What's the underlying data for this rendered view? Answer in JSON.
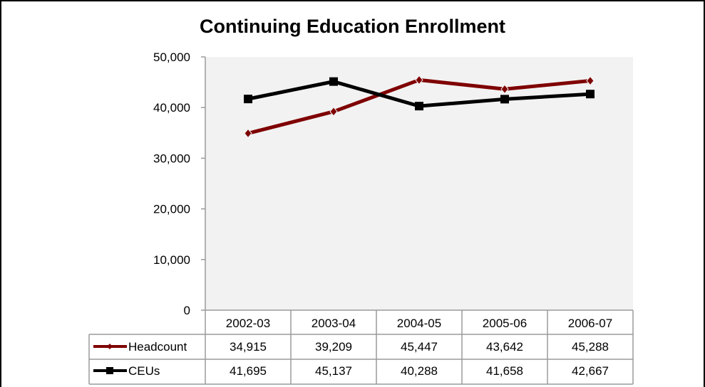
{
  "chart_data": {
    "type": "line",
    "title": "Continuing Education Enrollment",
    "categories": [
      "2002-03",
      "2003-04",
      "2004-05",
      "2005-06",
      "2006-07"
    ],
    "ylim": [
      0,
      50000
    ],
    "yticks": [
      "0",
      "10,000",
      "20,000",
      "30,000",
      "40,000",
      "50,000"
    ],
    "grid": false,
    "legend": "data table",
    "series": [
      {
        "name": "Headcount",
        "values": [
          34915,
          39209,
          45447,
          43642,
          45288
        ],
        "labels": [
          "34,915",
          "39,209",
          "45,447",
          "43,642",
          "45,288"
        ],
        "color": "#7f0000",
        "marker": "diamond"
      },
      {
        "name": "CEUs",
        "values": [
          41695,
          45137,
          40288,
          41658,
          42667
        ],
        "labels": [
          "41,695",
          "45,137",
          "40,288",
          "41,658",
          "42,667"
        ],
        "color": "#000000",
        "marker": "square"
      }
    ]
  }
}
